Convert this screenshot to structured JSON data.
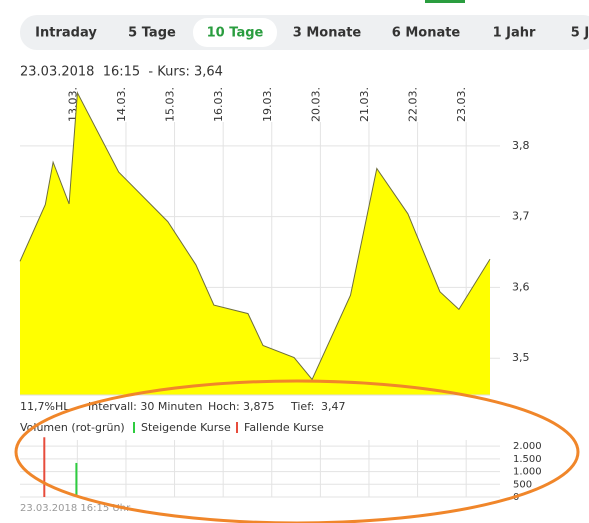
{
  "tabs": [
    "Intraday",
    "5 Tage",
    "10 Tage",
    "3 Monate",
    "6 Monate",
    "1 Jahr",
    "5 J"
  ],
  "active_tab": 2,
  "header": "23.03.2018  16:15  - Kurs: 3,64",
  "stats": {
    "range": "11,7%HL",
    "interval": "Intervall: 30 Minuten",
    "high_label": "Hoch:",
    "high": "3,875",
    "low_label": "Tief:",
    "low": "3,47"
  },
  "footer": "23.03.2018 16:15 Uhr",
  "chart_data": [
    {
      "type": "area",
      "color": "#ffff00",
      "line_color": "#6e6e3c",
      "x": [
        -1.18,
        -0.66,
        -0.5,
        -0.17,
        0,
        0.85,
        1.86,
        2.44,
        2.81,
        3.51,
        3.82,
        4.46,
        4.83,
        5.62,
        6.16,
        6.8,
        7.46,
        7.85,
        8.49
      ],
      "values": [
        3.637,
        3.717,
        3.777,
        3.718,
        3.875,
        3.763,
        3.693,
        3.632,
        3.575,
        3.563,
        3.518,
        3.501,
        3.47,
        3.589,
        3.768,
        3.704,
        3.594,
        3.569,
        3.64
      ],
      "xlim": [
        -1.18,
        8.49
      ],
      "xticks": [
        {
          "value": 0,
          "label": "13.03."
        },
        {
          "value": 1,
          "label": "14.03."
        },
        {
          "value": 2,
          "label": "15.03."
        },
        {
          "value": 3,
          "label": "16.03."
        },
        {
          "value": 4,
          "label": "19.03."
        },
        {
          "value": 5,
          "label": "20.03."
        },
        {
          "value": 6,
          "label": "21.03."
        },
        {
          "value": 7,
          "label": "22.03."
        },
        {
          "value": 8,
          "label": "23.03."
        }
      ],
      "ylim": [
        3.448,
        3.879
      ],
      "yticks": [
        {
          "value": 3.5,
          "label": "3,5"
        },
        {
          "value": 3.6,
          "label": "3,6"
        },
        {
          "value": 3.7,
          "label": "3,7"
        },
        {
          "value": 3.8,
          "label": "3,8"
        }
      ],
      "grid": true
    },
    {
      "type": "bar",
      "legend_title": "Volumen (rot-grün)",
      "series": [
        {
          "name": "Steigende Kurse",
          "color": "#2ecc40",
          "x": [
            -0.02
          ],
          "values": [
            1340
          ]
        },
        {
          "name": "Fallende Kurse",
          "color": "#e74c3c",
          "x": [
            -0.68
          ],
          "values": [
            2350
          ]
        }
      ],
      "ylim": [
        0,
        2400
      ],
      "yticks": [
        0,
        500,
        {
          "value": 1000,
          "label": "1.000"
        },
        {
          "value": 1500,
          "label": "1.500"
        },
        {
          "value": 2000,
          "label": "2.000"
        }
      ],
      "grid": true
    }
  ]
}
